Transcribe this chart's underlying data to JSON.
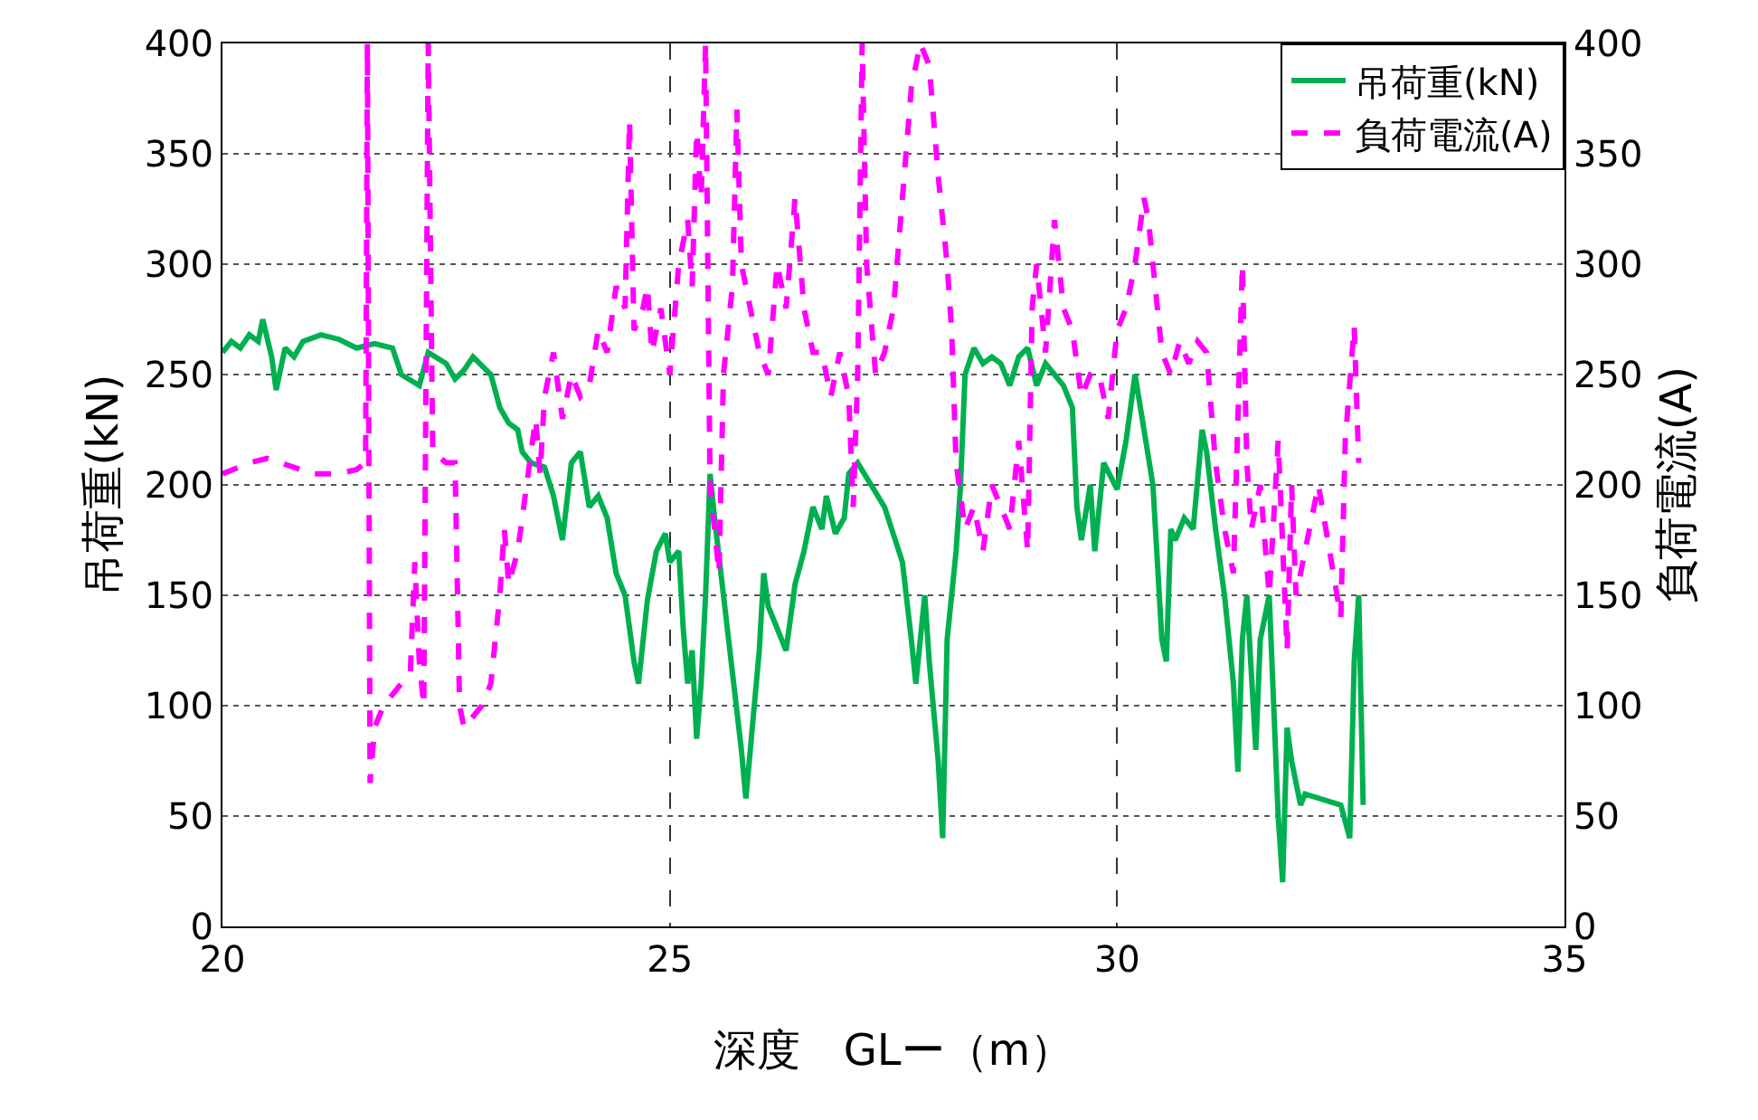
{
  "chart_data": {
    "type": "line",
    "xlabel": "深度　GLー（m）",
    "ylabel": "吊荷重(kN)",
    "y2label": "負荷電流(A)",
    "xlim": [
      20,
      35
    ],
    "xticks": [
      20,
      25,
      30,
      35
    ],
    "ylim": [
      0,
      400
    ],
    "yticks": [
      0,
      50,
      100,
      150,
      200,
      250,
      300,
      350,
      400
    ],
    "y2lim": [
      0,
      400
    ],
    "y2ticks": [
      0,
      50,
      100,
      150,
      200,
      250,
      300,
      350,
      400
    ],
    "grid": true,
    "legend": "top right",
    "marker": "none",
    "series": [
      {
        "name": "吊荷重(kN)",
        "color": "#00b050",
        "line_style": "solid",
        "x": [
          20.0,
          20.1,
          20.2,
          20.3,
          20.4,
          20.45,
          20.55,
          20.6,
          20.7,
          20.8,
          20.9,
          21.1,
          21.3,
          21.5,
          21.7,
          21.9,
          22.0,
          22.2,
          22.3,
          22.5,
          22.6,
          22.7,
          22.8,
          23.0,
          23.1,
          23.2,
          23.3,
          23.35,
          23.45,
          23.6,
          23.7,
          23.8,
          23.9,
          24.0,
          24.1,
          24.2,
          24.3,
          24.4,
          24.5,
          24.6,
          24.65,
          24.75,
          24.85,
          24.95,
          25.0,
          25.1,
          25.15,
          25.2,
          25.25,
          25.3,
          25.35,
          25.4,
          25.45,
          25.5,
          25.6,
          25.7,
          25.8,
          25.85,
          25.9,
          26.0,
          26.05,
          26.1,
          26.2,
          26.3,
          26.4,
          26.5,
          26.6,
          26.7,
          26.75,
          26.85,
          26.95,
          27.0,
          27.1,
          27.25,
          27.4,
          27.6,
          27.7,
          27.75,
          27.85,
          27.9,
          28.0,
          28.05,
          28.1,
          28.2,
          28.25,
          28.3,
          28.4,
          28.5,
          28.6,
          28.7,
          28.8,
          28.9,
          29.0,
          29.1,
          29.2,
          29.3,
          29.4,
          29.5,
          29.55,
          29.6,
          29.7,
          29.75,
          29.85,
          30.0,
          30.1,
          30.2,
          30.3,
          30.4,
          30.5,
          30.55,
          30.6,
          30.65,
          30.75,
          30.85,
          30.95,
          31.0,
          31.1,
          31.2,
          31.3,
          31.35,
          31.4,
          31.45,
          31.55,
          31.6,
          31.7,
          31.75,
          31.8,
          31.85,
          31.9,
          31.95,
          32.05,
          32.1,
          32.5,
          32.6,
          32.65,
          32.7,
          32.75
        ],
        "values": [
          260,
          265,
          262,
          268,
          265,
          275,
          258,
          243,
          262,
          258,
          265,
          268,
          266,
          262,
          264,
          262,
          250,
          245,
          260,
          255,
          248,
          252,
          258,
          250,
          235,
          228,
          225,
          215,
          210,
          208,
          195,
          175,
          210,
          215,
          190,
          195,
          185,
          160,
          150,
          120,
          110,
          148,
          170,
          178,
          165,
          170,
          135,
          110,
          125,
          85,
          110,
          150,
          205,
          185,
          150,
          115,
          80,
          58,
          80,
          125,
          160,
          145,
          135,
          125,
          155,
          170,
          190,
          180,
          195,
          178,
          185,
          205,
          210,
          200,
          190,
          165,
          130,
          110,
          150,
          120,
          75,
          40,
          130,
          170,
          200,
          250,
          262,
          255,
          258,
          255,
          245,
          258,
          262,
          245,
          255,
          250,
          245,
          235,
          190,
          175,
          200,
          170,
          210,
          198,
          220,
          250,
          225,
          200,
          130,
          120,
          180,
          175,
          185,
          180,
          225,
          215,
          180,
          150,
          110,
          70,
          130,
          150,
          80,
          130,
          150,
          100,
          50,
          20,
          90,
          75,
          55,
          60,
          55,
          40,
          120,
          150,
          55
        ]
      },
      {
        "name": "負荷電流(A)",
        "color": "#ff00ff",
        "line_style": "dashed",
        "axis": "y2",
        "x": [
          20.0,
          20.3,
          20.5,
          20.8,
          21.0,
          21.3,
          21.5,
          21.6,
          21.62,
          21.65,
          21.7,
          21.8,
          22.0,
          22.1,
          22.15,
          22.2,
          22.25,
          22.3,
          22.35,
          22.5,
          22.6,
          22.65,
          22.7,
          22.9,
          23.0,
          23.1,
          23.15,
          23.2,
          23.3,
          23.4,
          23.5,
          23.55,
          23.6,
          23.7,
          23.8,
          23.9,
          24.0,
          24.1,
          24.2,
          24.3,
          24.4,
          24.5,
          24.55,
          24.6,
          24.7,
          24.75,
          24.8,
          24.9,
          25.0,
          25.1,
          25.2,
          25.25,
          25.3,
          25.35,
          25.4,
          25.45,
          25.5,
          25.55,
          25.6,
          25.7,
          25.75,
          25.8,
          25.9,
          26.0,
          26.1,
          26.2,
          26.3,
          26.4,
          26.5,
          26.6,
          26.7,
          26.8,
          26.9,
          27.0,
          27.05,
          27.1,
          27.15,
          27.2,
          27.3,
          27.4,
          27.5,
          27.6,
          27.7,
          27.8,
          27.9,
          28.0,
          28.1,
          28.15,
          28.2,
          28.3,
          28.4,
          28.5,
          28.6,
          28.7,
          28.8,
          28.9,
          29.0,
          29.05,
          29.1,
          29.2,
          29.3,
          29.4,
          29.5,
          29.6,
          29.7,
          29.8,
          29.9,
          30.0,
          30.1,
          30.2,
          30.3,
          30.35,
          30.4,
          30.5,
          30.6,
          30.7,
          30.8,
          30.9,
          31.0,
          31.1,
          31.2,
          31.3,
          31.4,
          31.45,
          31.5,
          31.6,
          31.7,
          31.8,
          31.9,
          31.95,
          32.0,
          32.1,
          32.2,
          32.25,
          32.5,
          32.55,
          32.65,
          32.7
        ],
        "values": [
          205,
          210,
          212,
          208,
          205,
          205,
          207,
          210,
          400,
          65,
          90,
          100,
          110,
          115,
          165,
          120,
          100,
          400,
          215,
          210,
          210,
          100,
          90,
          100,
          110,
          150,
          180,
          155,
          170,
          200,
          230,
          205,
          240,
          260,
          230,
          250,
          240,
          245,
          270,
          260,
          290,
          280,
          365,
          270,
          280,
          290,
          260,
          280,
          250,
          300,
          320,
          290,
          360,
          330,
          400,
          200,
          180,
          160,
          250,
          290,
          370,
          300,
          280,
          260,
          250,
          300,
          280,
          330,
          280,
          260,
          260,
          240,
          260,
          240,
          190,
          250,
          400,
          300,
          250,
          260,
          280,
          330,
          380,
          400,
          390,
          340,
          300,
          270,
          210,
          180,
          190,
          170,
          200,
          190,
          180,
          220,
          170,
          280,
          300,
          260,
          320,
          280,
          270,
          240,
          250,
          250,
          230,
          270,
          280,
          300,
          330,
          320,
          300,
          260,
          250,
          265,
          255,
          265,
          260,
          210,
          180,
          160,
          300,
          210,
          180,
          200,
          150,
          220,
          125,
          200,
          150,
          170,
          190,
          200,
          140,
          220,
          272,
          210
        ]
      }
    ]
  }
}
